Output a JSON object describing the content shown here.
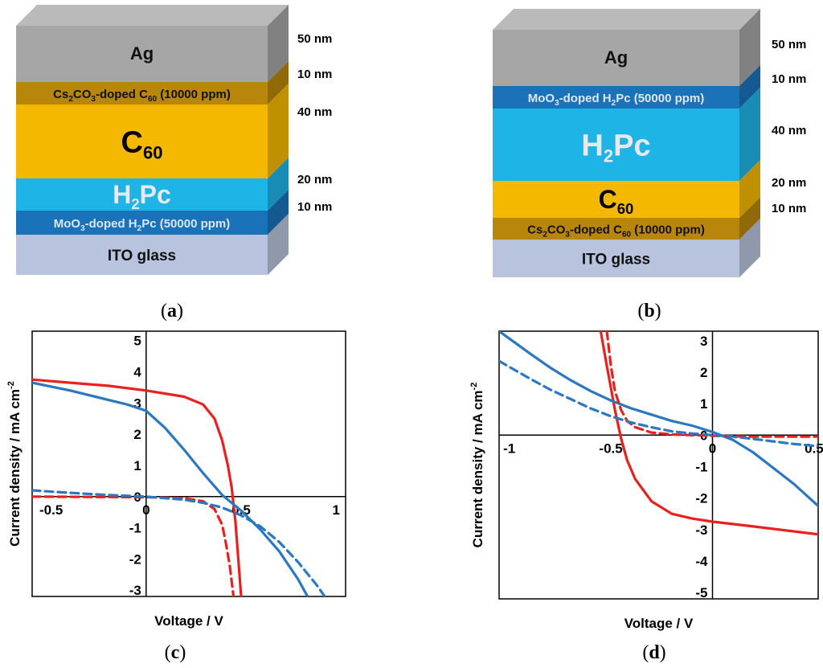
{
  "panels": {
    "a": {
      "caption_open": "(",
      "caption_letter": "a",
      "caption_close": ")",
      "layers": [
        {
          "key": "ag",
          "label": "Ag",
          "thickness": "50 nm"
        },
        {
          "key": "cs",
          "label_main": "Cs",
          "label_sub1": "2",
          "label_mid": "CO",
          "label_sub2": "3",
          "label_mid2": "-doped C",
          "label_sub3": "60",
          "label_end": "  (10000 ppm)",
          "thickness": "10 nm"
        },
        {
          "key": "c60",
          "label_main": "C",
          "label_sub": "60",
          "thickness": "40 nm"
        },
        {
          "key": "h2pc",
          "label_main": "H",
          "label_sub": "2",
          "label_end": "Pc",
          "thickness": "20 nm"
        },
        {
          "key": "moo",
          "label_main": "MoO",
          "label_sub1": "3",
          "label_mid": "-doped H",
          "label_sub2": "2",
          "label_end": "Pc (50000 ppm)",
          "thickness": "10 nm"
        },
        {
          "key": "ito",
          "label": "ITO glass"
        }
      ]
    },
    "b": {
      "caption_open": "(",
      "caption_letter": "b",
      "caption_close": ")",
      "layers": [
        {
          "key": "ag",
          "label": "Ag",
          "thickness": "50 nm"
        },
        {
          "key": "moo",
          "label_main": "MoO",
          "label_sub1": "3",
          "label_mid": "-doped H",
          "label_sub2": "2",
          "label_end": "Pc (50000 ppm)",
          "thickness": "10 nm"
        },
        {
          "key": "h2pc",
          "label_main": "H",
          "label_sub": "2",
          "label_end": "Pc",
          "thickness": "40 nm"
        },
        {
          "key": "c60",
          "label_main": "C",
          "label_sub": "60",
          "thickness": "20 nm"
        },
        {
          "key": "cs",
          "label_main": "Cs",
          "label_sub1": "2",
          "label_mid": "CO",
          "label_sub2": "3",
          "label_mid2": "-doped C",
          "label_sub3": "60",
          "label_end": "  (10000 ppm)",
          "thickness": "10 nm"
        },
        {
          "key": "ito",
          "label": "ITO glass"
        }
      ]
    }
  },
  "layer_colors": {
    "ag": "#a6a6a6",
    "cs": "#b8860b",
    "c60": "#f5b800",
    "h2pc": "#1fb4e6",
    "moo": "#1a73b8",
    "ito": "#b8c4dd"
  },
  "chart_data": [
    {
      "panel": "c",
      "type": "line",
      "caption_open": "(",
      "caption_letter": "c",
      "caption_close": ")",
      "xlabel": "Voltage / V",
      "ylabel": "Current density / mA cm",
      "ylabel_sup": "-2",
      "xlim": [
        -0.6,
        1.05
      ],
      "ylim": [
        -3.2,
        5.3
      ],
      "xticks": [
        {
          "v": -0.5,
          "t": "-0.5"
        },
        {
          "v": 0,
          "t": "0"
        },
        {
          "v": 0.5,
          "t": "0.5"
        },
        {
          "v": 1,
          "t": "1"
        }
      ],
      "yticks": [
        {
          "v": 5,
          "t": "5"
        },
        {
          "v": 4,
          "t": "4"
        },
        {
          "v": 3,
          "t": "3"
        },
        {
          "v": 2,
          "t": "2"
        },
        {
          "v": 1,
          "t": "1"
        },
        {
          "v": 0,
          "t": "0"
        },
        {
          "v": -1,
          "t": "-1"
        },
        {
          "v": -2,
          "t": "-2"
        },
        {
          "v": -3,
          "t": "-3"
        }
      ],
      "grid": false,
      "series": [
        {
          "color": "#e8211e",
          "dash": false,
          "x": [
            -0.6,
            -0.4,
            -0.2,
            0,
            0.2,
            0.3,
            0.36,
            0.4,
            0.43,
            0.45,
            0.47,
            0.48,
            0.5
          ],
          "y": [
            3.75,
            3.65,
            3.55,
            3.4,
            3.2,
            2.95,
            2.5,
            1.8,
            1.0,
            0.3,
            -0.8,
            -1.6,
            -3.2
          ]
        },
        {
          "color": "#2a78c2",
          "dash": false,
          "x": [
            -0.6,
            -0.4,
            -0.2,
            -0.1,
            0,
            0.1,
            0.2,
            0.3,
            0.4,
            0.5,
            0.6,
            0.7,
            0.8,
            0.85
          ],
          "y": [
            3.65,
            3.4,
            3.1,
            2.95,
            2.75,
            2.2,
            1.5,
            0.75,
            0.05,
            -0.45,
            -1.05,
            -1.75,
            -2.65,
            -3.2
          ]
        },
        {
          "color": "#e8211e",
          "dash": true,
          "x": [
            -0.6,
            -0.3,
            0,
            0.2,
            0.3,
            0.36,
            0.4,
            0.42,
            0.44,
            0.46
          ],
          "y": [
            0.0,
            -0.01,
            -0.02,
            -0.05,
            -0.15,
            -0.4,
            -0.9,
            -1.5,
            -2.2,
            -3.2
          ]
        },
        {
          "color": "#2a78c2",
          "dash": true,
          "x": [
            -0.6,
            -0.4,
            -0.2,
            0,
            0.2,
            0.3,
            0.4,
            0.5,
            0.6,
            0.7,
            0.8,
            0.9,
            0.94
          ],
          "y": [
            0.2,
            0.12,
            0.05,
            0.0,
            -0.1,
            -0.2,
            -0.35,
            -0.6,
            -0.95,
            -1.45,
            -2.1,
            -2.85,
            -3.2
          ]
        }
      ]
    },
    {
      "panel": "d",
      "type": "line",
      "caption_open": "(",
      "caption_letter": "d",
      "caption_close": ")",
      "xlabel": "Voltage / V",
      "ylabel": "Current density / mA cm",
      "ylabel_sup": "-2",
      "xlim": [
        -1.05,
        0.52
      ],
      "ylim": [
        -5.2,
        3.3
      ],
      "xticks": [
        {
          "v": -1,
          "t": "-1"
        },
        {
          "v": -0.5,
          "t": "-0.5"
        },
        {
          "v": 0,
          "t": "0"
        },
        {
          "v": 0.5,
          "t": "0.5"
        }
      ],
      "yticks": [
        {
          "v": 3,
          "t": "3"
        },
        {
          "v": 2,
          "t": "2"
        },
        {
          "v": 1,
          "t": "1"
        },
        {
          "v": 0,
          "t": "0"
        },
        {
          "v": -1,
          "t": "-1"
        },
        {
          "v": -2,
          "t": "-2"
        },
        {
          "v": -3,
          "t": "-3"
        },
        {
          "v": -4,
          "t": "-4"
        },
        {
          "v": -5,
          "t": "-5"
        }
      ],
      "grid": false,
      "series": [
        {
          "color": "#e8211e",
          "dash": false,
          "x": [
            -0.55,
            -0.52,
            -0.5,
            -0.48,
            -0.45,
            -0.42,
            -0.38,
            -0.3,
            -0.2,
            -0.1,
            0,
            0.2,
            0.52
          ],
          "y": [
            3.3,
            2.2,
            1.5,
            0.8,
            -0.1,
            -0.8,
            -1.4,
            -2.1,
            -2.5,
            -2.65,
            -2.75,
            -2.9,
            -3.15
          ]
        },
        {
          "color": "#2a78c2",
          "dash": false,
          "x": [
            -1.05,
            -0.9,
            -0.8,
            -0.7,
            -0.6,
            -0.5,
            -0.4,
            -0.3,
            -0.2,
            -0.1,
            0,
            0.1,
            0.2,
            0.3,
            0.4,
            0.52
          ],
          "y": [
            3.3,
            2.6,
            2.15,
            1.75,
            1.4,
            1.1,
            0.85,
            0.65,
            0.45,
            0.3,
            0.1,
            -0.15,
            -0.55,
            -1.05,
            -1.55,
            -2.25
          ]
        },
        {
          "color": "#e8211e",
          "dash": true,
          "x": [
            -0.52,
            -0.5,
            -0.48,
            -0.45,
            -0.42,
            -0.38,
            -0.3,
            -0.2,
            -0.1,
            0,
            0.2,
            0.52
          ],
          "y": [
            3.3,
            2.2,
            1.4,
            0.8,
            0.45,
            0.25,
            0.08,
            0.02,
            0.0,
            -0.02,
            -0.05,
            -0.05
          ]
        },
        {
          "color": "#2a78c2",
          "dash": true,
          "x": [
            -1.05,
            -0.9,
            -0.8,
            -0.7,
            -0.6,
            -0.5,
            -0.4,
            -0.3,
            -0.2,
            -0.1,
            0,
            0.1,
            0.2,
            0.3,
            0.4,
            0.52
          ],
          "y": [
            2.35,
            1.8,
            1.45,
            1.15,
            0.85,
            0.6,
            0.4,
            0.25,
            0.12,
            0.05,
            0.0,
            -0.05,
            -0.12,
            -0.2,
            -0.28,
            -0.35
          ]
        }
      ]
    }
  ]
}
